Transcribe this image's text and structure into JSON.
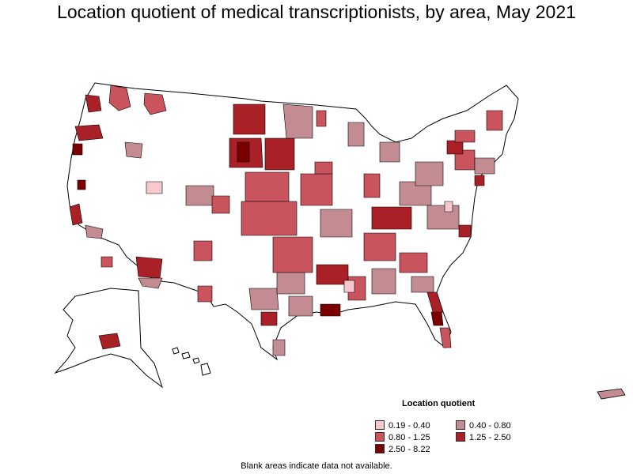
{
  "title": "Location quotient of medical transcriptionists, by area, May 2021",
  "legend": {
    "title": "Location quotient",
    "items": [
      {
        "label": "0.19 - 0.40",
        "color": "#f7c9cf"
      },
      {
        "label": "0.40 - 0.80",
        "color": "#c28c92"
      },
      {
        "label": "0.80 - 1.25",
        "color": "#c9545e"
      },
      {
        "label": "1.25 - 2.50",
        "color": "#a92127"
      },
      {
        "label": "2.50 - 8.22",
        "color": "#7a0000"
      }
    ]
  },
  "footnote": "Blank areas indicate data not available.",
  "colors": {
    "background": "#ffffff",
    "border": "#000000",
    "no_data": "#ffffff"
  }
}
